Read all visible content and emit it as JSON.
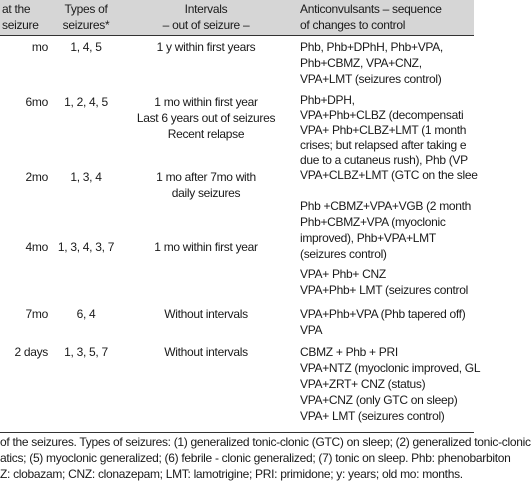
{
  "table": {
    "header": [
      [
        "at the",
        "seizure"
      ],
      [
        "Types of",
        "seizures*"
      ],
      [
        "Intervals",
        "– out of seizure –"
      ],
      [
        "Anticonvulsants – sequence",
        "of changes to control"
      ]
    ],
    "rows": [
      [
        [
          "mo"
        ],
        [
          "1, 4, 5"
        ],
        [
          "1 y within first years"
        ],
        [
          "Phb, Phb+DPhH, Phb+VPA,",
          "Phb+CBMZ, VPA+CNZ,",
          "VPA+LMT (seizures control)"
        ]
      ],
      [
        [
          "6mo"
        ],
        [
          "1, 2, 4, 5"
        ],
        [
          "1 mo within first year",
          "Last 6 years out of seizures",
          "Recent relapse"
        ],
        [
          "Phb+DPH,",
          "VPA+Phb+CLBZ (decompensati",
          "VPA+ Phb+CLBZ+LMT (1 month",
          "crises; but relapsed after taking e",
          "due to a cutaneus rush), Phb (VP",
          "VPA+CLBZ+LMT (GTC on the slee"
        ]
      ],
      [
        [
          "2mo"
        ],
        [
          "1, 3, 4"
        ],
        [
          "1 mo after 7mo with",
          "daily seizures"
        ],
        [
          "Phb +CBMZ+VPA+VGB (2 month",
          "Phb+CBMZ+VPA (myoclonic",
          "improved), Phb+VPA+LMT",
          "(seizures control)"
        ]
      ],
      [
        [
          "4mo"
        ],
        [
          "1, 3, 4, 3, 7"
        ],
        [
          "1 mo within first year"
        ],
        [
          "VPA+ Phb+ CNZ",
          "VPA+Phb+ LMT (seizures control"
        ]
      ],
      [
        [
          "7mo"
        ],
        [
          "6, 4"
        ],
        [
          "Without intervals"
        ],
        [
          "VPA+Phb+VPA (Phb tapered off)",
          "VPA"
        ]
      ],
      [
        [
          "2 days"
        ],
        [
          "1, 3, 5, 7"
        ],
        [
          "Without intervals"
        ],
        [
          "CBMZ + Phb + PRI",
          "VPA+NTZ (myoclonic improved, GL",
          "VPA+ZRT+ CNZ (status)",
          "VPA+CNZ (only GTC on sleep)",
          "VPA+ LMT (seizures control)"
        ]
      ]
    ],
    "footnote": [
      "of the seizures. Types of seizures: (1) generalized tonic-clonic (GTC) on sleep; (2) generalized tonic-clonic",
      "atics; (5) myoclonic generalized; (6) febrile - clonic generalized; (7) tonic on sleep. Phb: phenobarbiton",
      "Z: clobazam; CNZ: clonazepam; LMT: lamotrigine; PRI: primidone; y: years; old mo: months."
    ]
  }
}
